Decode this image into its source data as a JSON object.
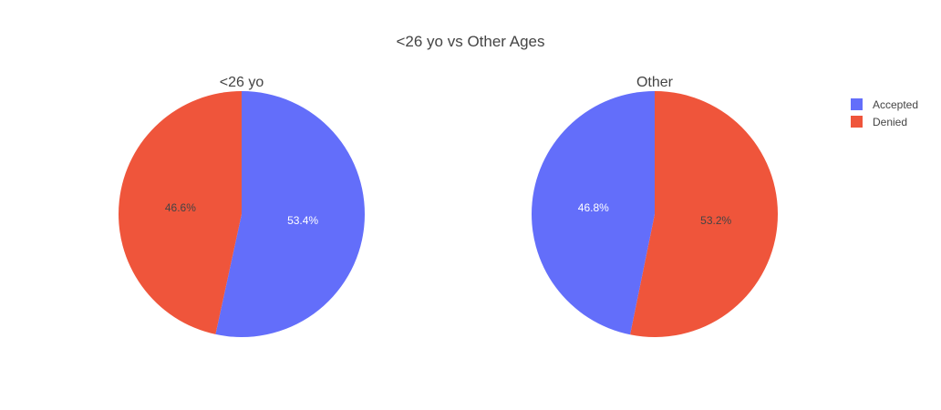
{
  "chart_data": {
    "type": "pie",
    "title": "<26 yo vs Other Ages",
    "colors": {
      "Accepted": "#636efa",
      "Denied": "#ef553b"
    },
    "legend": {
      "position": "top-right",
      "entries": [
        "Accepted",
        "Denied"
      ]
    },
    "pies": [
      {
        "title": "<26 yo",
        "slices": [
          {
            "label": "Accepted",
            "value": 53.4,
            "text": "53.4%"
          },
          {
            "label": "Denied",
            "value": 46.6,
            "text": "46.6%"
          }
        ]
      },
      {
        "title": "Other",
        "slices": [
          {
            "label": "Denied",
            "value": 53.2,
            "text": "53.2%"
          },
          {
            "label": "Accepted",
            "value": 46.8,
            "text": "46.8%"
          }
        ]
      }
    ]
  }
}
